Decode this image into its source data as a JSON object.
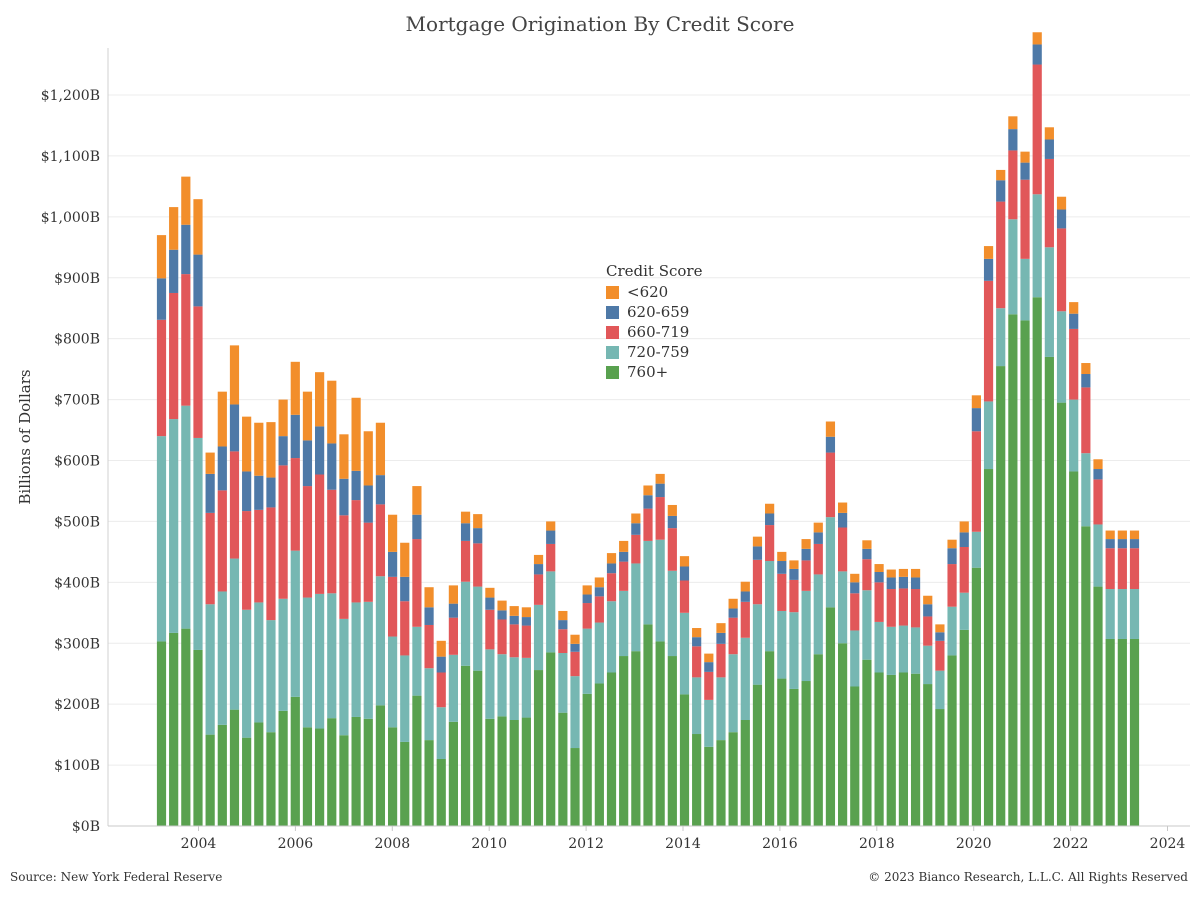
{
  "chart_data": {
    "type": "bar",
    "stacked": true,
    "title": "Mortgage Origination By Credit Score",
    "ylabel": "Billions of Dollars",
    "xlabel": "",
    "ylim": [
      0,
      1300
    ],
    "xlim": [
      2003.0,
      2024.4
    ],
    "y_ticks": [
      0,
      100,
      200,
      300,
      400,
      500,
      600,
      700,
      800,
      900,
      1000,
      1100,
      1200
    ],
    "y_tick_labels": [
      "$0B",
      "$100B",
      "$200B",
      "$300B",
      "$400B",
      "$500B",
      "$600B",
      "$700B",
      "$800B",
      "$900B",
      "$1,000B",
      "$1,100B",
      "$1,200B"
    ],
    "x_ticks": [
      2004,
      2006,
      2008,
      2010,
      2012,
      2014,
      2016,
      2018,
      2020,
      2022,
      2024
    ],
    "x_tick_labels": [
      "2004",
      "2006",
      "2008",
      "2010",
      "2012",
      "2014",
      "2016",
      "2018",
      "2020",
      "2022",
      "2024"
    ],
    "grid": true,
    "legend_title": "Credit Score",
    "legend_position": "center",
    "categories": [
      "2003 Q1",
      "2003 Q2",
      "2003 Q3",
      "2003 Q4",
      "2004 Q1",
      "2004 Q2",
      "2004 Q3",
      "2004 Q4",
      "2005 Q1",
      "2005 Q2",
      "2005 Q3",
      "2005 Q4",
      "2006 Q1",
      "2006 Q2",
      "2006 Q3",
      "2006 Q4",
      "2007 Q1",
      "2007 Q2",
      "2007 Q3",
      "2007 Q4",
      "2008 Q1",
      "2008 Q2",
      "2008 Q3",
      "2008 Q4",
      "2009 Q1",
      "2009 Q2",
      "2009 Q3",
      "2009 Q4",
      "2010 Q1",
      "2010 Q2",
      "2010 Q3",
      "2010 Q4",
      "2011 Q1",
      "2011 Q2",
      "2011 Q3",
      "2011 Q4",
      "2012 Q1",
      "2012 Q2",
      "2012 Q3",
      "2012 Q4",
      "2013 Q1",
      "2013 Q2",
      "2013 Q3",
      "2013 Q4",
      "2014 Q1",
      "2014 Q2",
      "2014 Q3",
      "2014 Q4",
      "2015 Q1",
      "2015 Q2",
      "2015 Q3",
      "2015 Q4",
      "2016 Q1",
      "2016 Q2",
      "2016 Q3",
      "2016 Q4",
      "2017 Q1",
      "2017 Q2",
      "2017 Q3",
      "2017 Q4",
      "2018 Q1",
      "2018 Q2",
      "2018 Q3",
      "2018 Q4",
      "2019 Q1",
      "2019 Q2",
      "2019 Q3",
      "2019 Q4",
      "2020 Q1",
      "2020 Q2",
      "2020 Q3",
      "2020 Q4",
      "2021 Q1",
      "2021 Q2",
      "2021 Q3",
      "2021 Q4",
      "2022 Q1",
      "2022 Q2",
      "2022 Q3",
      "2022 Q4",
      "2023 Q1"
    ],
    "series": [
      {
        "name": "760+",
        "color": "#59a14f",
        "values": [
          303,
          317,
          324,
          289,
          150,
          166,
          191,
          145,
          170,
          154,
          189,
          212,
          162,
          160,
          177,
          149,
          179,
          176,
          198,
          162,
          138,
          214,
          141,
          110,
          171,
          263,
          255,
          176,
          180,
          174,
          178,
          256,
          285,
          186,
          128,
          217,
          234,
          252,
          279,
          287,
          331,
          303,
          279,
          216,
          151,
          130,
          141,
          154,
          174,
          232,
          287,
          242,
          225,
          238,
          282,
          359,
          300,
          229,
          273,
          252,
          248,
          252,
          250,
          233,
          192,
          280,
          322,
          424,
          586,
          755,
          840,
          830,
          868,
          770,
          695,
          582,
          492,
          393,
          307,
          307,
          307
        ]
      },
      {
        "name": "720-759",
        "color": "#76b7b2",
        "values": [
          337,
          351,
          366,
          348,
          214,
          219,
          248,
          210,
          197,
          184,
          184,
          240,
          213,
          221,
          205,
          191,
          188,
          192,
          212,
          149,
          142,
          113,
          118,
          85,
          110,
          138,
          138,
          114,
          102,
          103,
          98,
          107,
          133,
          98,
          118,
          107,
          100,
          117,
          107,
          144,
          137,
          167,
          140,
          134,
          93,
          77,
          103,
          128,
          135,
          132,
          148,
          111,
          126,
          148,
          131,
          148,
          118,
          92,
          114,
          83,
          79,
          77,
          76,
          63,
          63,
          80,
          61,
          59,
          111,
          95,
          156,
          101,
          169,
          180,
          150,
          118,
          120,
          102,
          82,
          82,
          82
        ]
      },
      {
        "name": "660-719",
        "color": "#e15759",
        "values": [
          191,
          207,
          216,
          216,
          150,
          166,
          176,
          162,
          152,
          185,
          219,
          152,
          183,
          196,
          170,
          170,
          168,
          130,
          118,
          98,
          89,
          144,
          71,
          57,
          61,
          67,
          71,
          65,
          57,
          54,
          53,
          50,
          45,
          39,
          40,
          42,
          43,
          46,
          48,
          47,
          53,
          70,
          70,
          53,
          51,
          46,
          55,
          60,
          59,
          73,
          59,
          61,
          53,
          50,
          50,
          106,
          72,
          61,
          51,
          65,
          62,
          61,
          63,
          48,
          49,
          70,
          75,
          165,
          198,
          175,
          113,
          130,
          213,
          145,
          136,
          116,
          108,
          74,
          67,
          67,
          67
        ]
      },
      {
        "name": "620-659",
        "color": "#4e79a7",
        "values": [
          68,
          71,
          81,
          85,
          64,
          72,
          77,
          65,
          56,
          49,
          48,
          71,
          75,
          79,
          76,
          60,
          48,
          61,
          48,
          41,
          40,
          40,
          29,
          26,
          23,
          29,
          25,
          20,
          15,
          14,
          14,
          17,
          22,
          15,
          13,
          14,
          15,
          16,
          16,
          19,
          22,
          22,
          20,
          23,
          15,
          16,
          18,
          15,
          17,
          22,
          19,
          21,
          18,
          19,
          19,
          26,
          24,
          18,
          17,
          17,
          19,
          19,
          19,
          20,
          14,
          26,
          24,
          38,
          36,
          35,
          35,
          28,
          33,
          32,
          31,
          25,
          22,
          17,
          15,
          15,
          15
        ]
      },
      {
        "name": "<620",
        "color": "#f28e2b",
        "values": [
          71,
          70,
          79,
          91,
          35,
          90,
          97,
          90,
          87,
          91,
          60,
          87,
          80,
          89,
          103,
          73,
          120,
          89,
          86,
          61,
          56,
          47,
          33,
          26,
          30,
          19,
          23,
          16,
          16,
          16,
          16,
          15,
          15,
          15,
          15,
          15,
          16,
          17,
          18,
          16,
          16,
          16,
          18,
          17,
          15,
          14,
          16,
          16,
          16,
          16,
          16,
          15,
          14,
          16,
          16,
          25,
          17,
          14,
          14,
          13,
          13,
          13,
          14,
          14,
          13,
          14,
          18,
          21,
          21,
          17,
          21,
          18,
          20,
          20,
          21,
          19,
          18,
          16,
          14,
          14,
          14
        ]
      }
    ]
  },
  "footer": {
    "source": "Source: New York Federal Reserve",
    "copyright": "© 2023 Bianco Research, L.L.C. All Rights Reserved"
  }
}
